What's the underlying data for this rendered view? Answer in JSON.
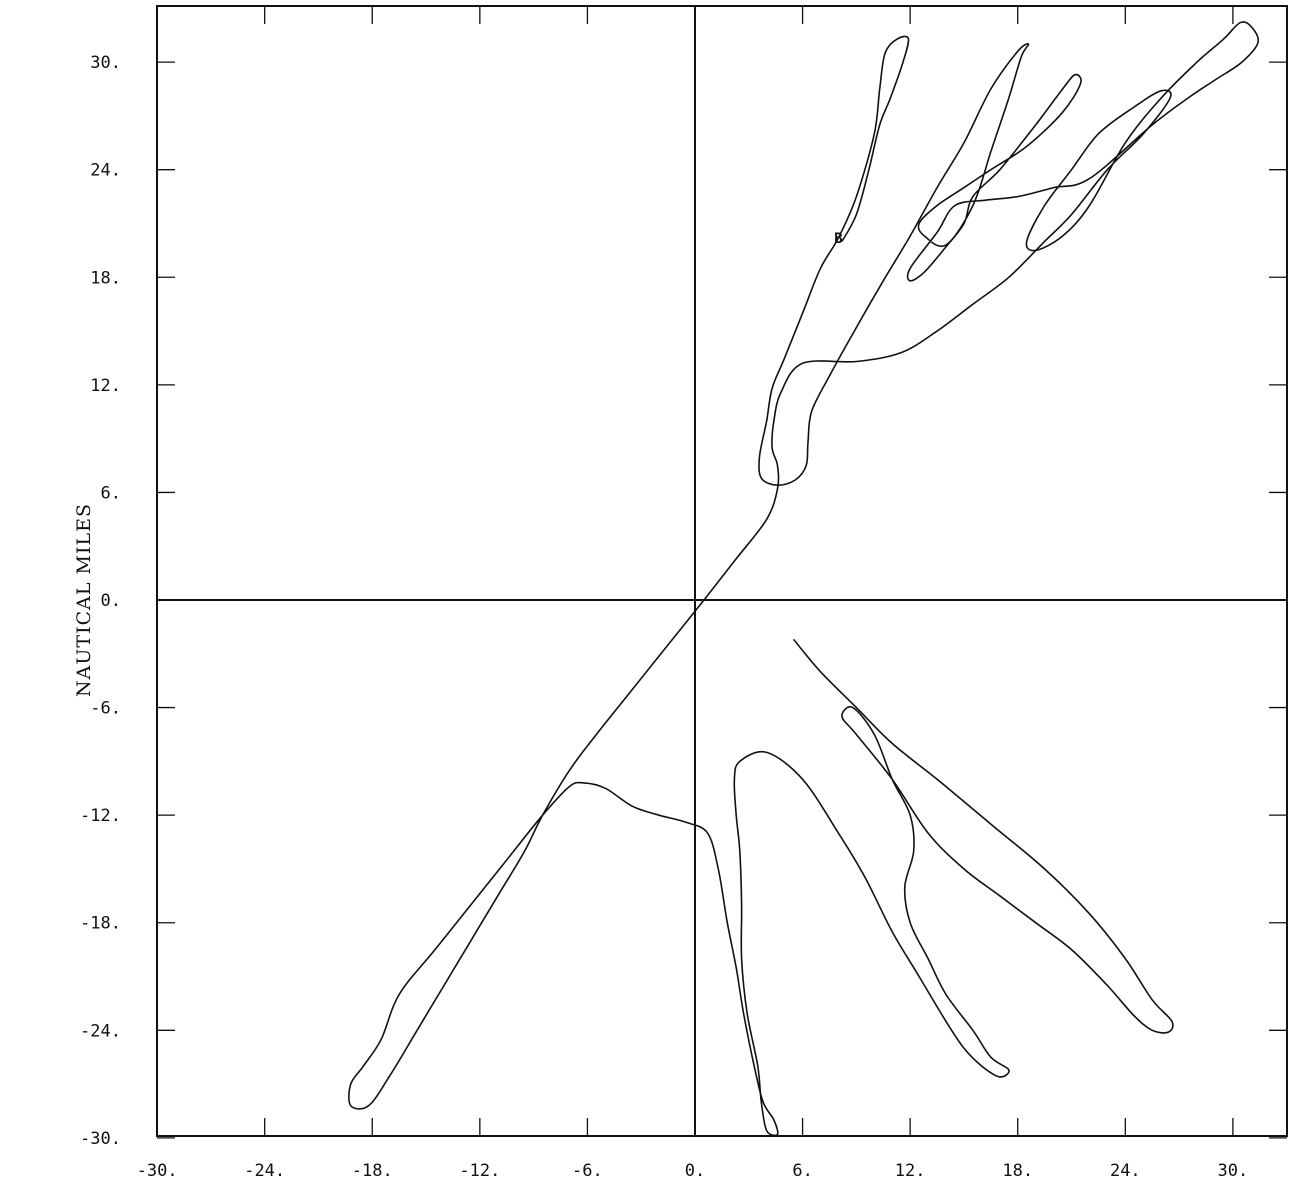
{
  "chart_data": {
    "type": "line",
    "title": "",
    "xlabel": "",
    "ylabel": "NAUTICAL MILES",
    "xlim": [
      -30,
      33
    ],
    "ylim": [
      -30,
      33
    ],
    "x_ticks": [
      "-30.",
      "-24.",
      "-18.",
      "-12.",
      "-6.",
      "0.",
      "6.",
      "12.",
      "18.",
      "24.",
      "30."
    ],
    "y_ticks": [
      "30.",
      "24.",
      "18.",
      "12.",
      "6.",
      "0.",
      "-6.",
      "-12.",
      "-18.",
      "-24.",
      "-30."
    ],
    "grid": false,
    "axes_through_origin": true,
    "marker": {
      "label": "B",
      "x": 8.0,
      "y": 20.2
    },
    "series": [
      {
        "points": [
          [
            5.5,
            -2.2
          ],
          [
            7,
            -4
          ],
          [
            9,
            -6
          ],
          [
            11,
            -8
          ],
          [
            13.5,
            -10
          ],
          [
            16.5,
            -12.5
          ],
          [
            19.5,
            -15
          ],
          [
            22,
            -17.5
          ],
          [
            24,
            -20
          ],
          [
            25.5,
            -22.3
          ],
          [
            26.6,
            -23.5
          ],
          [
            26.4,
            -24.1
          ],
          [
            25.5,
            -24
          ],
          [
            24.5,
            -23.2
          ],
          [
            23,
            -21.5
          ],
          [
            21,
            -19.5
          ],
          [
            19,
            -18
          ],
          [
            17,
            -16.5
          ],
          [
            15,
            -15
          ],
          [
            13,
            -13
          ],
          [
            11,
            -10
          ],
          [
            9,
            -7.5
          ],
          [
            8.2,
            -6.5
          ],
          [
            8.8,
            -6
          ],
          [
            10,
            -7.5
          ],
          [
            11,
            -10
          ],
          [
            12,
            -12
          ],
          [
            12.2,
            -14
          ],
          [
            11.7,
            -16
          ],
          [
            12,
            -18
          ],
          [
            13,
            -20
          ],
          [
            14,
            -22
          ],
          [
            15.5,
            -24
          ],
          [
            16.5,
            -25.5
          ],
          [
            17.5,
            -26.2
          ],
          [
            17,
            -26.6
          ],
          [
            16,
            -26
          ],
          [
            15,
            -25
          ],
          [
            14,
            -23.5
          ],
          [
            12.5,
            -21
          ],
          [
            11,
            -18.5
          ],
          [
            9.5,
            -15.5
          ],
          [
            8,
            -13
          ],
          [
            6,
            -10
          ],
          [
            4,
            -8.5
          ],
          [
            2.5,
            -9
          ],
          [
            2.2,
            -10
          ],
          [
            2.3,
            -12
          ],
          [
            2.5,
            -14
          ],
          [
            2.6,
            -17
          ],
          [
            2.6,
            -20
          ],
          [
            2.9,
            -23
          ],
          [
            3.5,
            -26
          ],
          [
            3.7,
            -28
          ],
          [
            4,
            -29.6
          ],
          [
            4.6,
            -29.8
          ],
          [
            4.4,
            -29
          ],
          [
            3.8,
            -28
          ],
          [
            3.3,
            -26
          ],
          [
            2.7,
            -23
          ],
          [
            2.3,
            -20.5
          ],
          [
            1.8,
            -18
          ],
          [
            1.3,
            -15
          ],
          [
            0.7,
            -13
          ],
          [
            -0.5,
            -12.4
          ],
          [
            -2,
            -12
          ],
          [
            -3.5,
            -11.5
          ],
          [
            -5,
            -10.5
          ],
          [
            -6.2,
            -10.2
          ],
          [
            -7,
            -10.4
          ],
          [
            -8.5,
            -12
          ],
          [
            -10.5,
            -14.5
          ],
          [
            -12.5,
            -17
          ],
          [
            -14.5,
            -19.5
          ],
          [
            -16.5,
            -22
          ],
          [
            -17.5,
            -24.5
          ],
          [
            -18.5,
            -26
          ],
          [
            -19.2,
            -27
          ],
          [
            -19.2,
            -28.2
          ],
          [
            -18.2,
            -28.2
          ],
          [
            -17,
            -26.5
          ],
          [
            -15.5,
            -24
          ],
          [
            -14,
            -21.5
          ],
          [
            -12.5,
            -19
          ],
          [
            -11,
            -16.5
          ],
          [
            -9.5,
            -14
          ],
          [
            -8.5,
            -12
          ],
          [
            -7,
            -9.5
          ],
          [
            -5.5,
            -7.5
          ],
          [
            -3.5,
            -5
          ],
          [
            -1.5,
            -2.5
          ],
          [
            0.5,
            0
          ],
          [
            2.3,
            2.3
          ],
          [
            4,
            4.5
          ],
          [
            4.6,
            6.2
          ],
          [
            4.6,
            7.5
          ],
          [
            4.3,
            8.5
          ],
          [
            4.4,
            10
          ],
          [
            4.8,
            11.6
          ],
          [
            6,
            13.2
          ],
          [
            9,
            13.3
          ],
          [
            11.5,
            13.8
          ],
          [
            13.5,
            15
          ],
          [
            15.5,
            16.5
          ],
          [
            17.5,
            18
          ],
          [
            19.5,
            20
          ],
          [
            21,
            21.5
          ],
          [
            23,
            24
          ],
          [
            25,
            26
          ],
          [
            26.5,
            28
          ],
          [
            26,
            28.4
          ],
          [
            24.5,
            27.5
          ],
          [
            22.5,
            26
          ],
          [
            21,
            24
          ],
          [
            19.5,
            22
          ],
          [
            18.5,
            20
          ],
          [
            19,
            19.5
          ],
          [
            20.5,
            20.3
          ],
          [
            22,
            22
          ],
          [
            24,
            25.5
          ],
          [
            26,
            28
          ],
          [
            28,
            30
          ],
          [
            29.5,
            31.3
          ],
          [
            30.4,
            32.2
          ],
          [
            31,
            32
          ],
          [
            31.4,
            31.1
          ],
          [
            30.5,
            30
          ],
          [
            29,
            29
          ],
          [
            27.5,
            28
          ],
          [
            25.5,
            26.5
          ],
          [
            22,
            23.5
          ],
          [
            20,
            23
          ],
          [
            18,
            22.5
          ],
          [
            16.2,
            22.3
          ],
          [
            14.5,
            22
          ],
          [
            13.5,
            20.5
          ],
          [
            12,
            18.5
          ],
          [
            12,
            17.8
          ],
          [
            12.8,
            18.3
          ],
          [
            14,
            19.7
          ],
          [
            15,
            21
          ],
          [
            15.5,
            22.5
          ],
          [
            17,
            24
          ],
          [
            19,
            26.5
          ],
          [
            20.5,
            28.5
          ],
          [
            21.2,
            29.3
          ],
          [
            21.5,
            28.8
          ],
          [
            20.5,
            27.2
          ],
          [
            18.5,
            25.3
          ],
          [
            16.5,
            24
          ],
          [
            15,
            23
          ],
          [
            13.5,
            22
          ],
          [
            12.5,
            21
          ],
          [
            12.8,
            20.3
          ],
          [
            14,
            19.8
          ],
          [
            15.5,
            22
          ],
          [
            16.5,
            25
          ],
          [
            17.5,
            28
          ],
          [
            18.2,
            30.3
          ],
          [
            18.6,
            31
          ],
          [
            18,
            30.6
          ],
          [
            16.5,
            28.5
          ],
          [
            15,
            25.5
          ],
          [
            13.5,
            23
          ],
          [
            12,
            20.3
          ],
          [
            10.5,
            17.8
          ],
          [
            9,
            15.2
          ],
          [
            7.5,
            12.5
          ],
          [
            6.5,
            10.5
          ],
          [
            6.3,
            8.8
          ],
          [
            6.2,
            7.5
          ],
          [
            5.6,
            6.7
          ],
          [
            4.6,
            6.4
          ],
          [
            3.7,
            6.8
          ],
          [
            3.6,
            8
          ],
          [
            4,
            10
          ],
          [
            4.3,
            11.8
          ],
          [
            5,
            13.5
          ],
          [
            6,
            16
          ],
          [
            7,
            18.5
          ],
          [
            8,
            20.2
          ],
          [
            9,
            22.5
          ],
          [
            10,
            26
          ],
          [
            10.3,
            28.5
          ],
          [
            10.6,
            30.5
          ],
          [
            11.3,
            31.3
          ],
          [
            11.9,
            31.3
          ],
          [
            11.6,
            30
          ],
          [
            10.9,
            28
          ],
          [
            10.3,
            26.5
          ],
          [
            9.7,
            24
          ],
          [
            9,
            21.5
          ],
          [
            8.2,
            20
          ]
        ]
      }
    ]
  }
}
